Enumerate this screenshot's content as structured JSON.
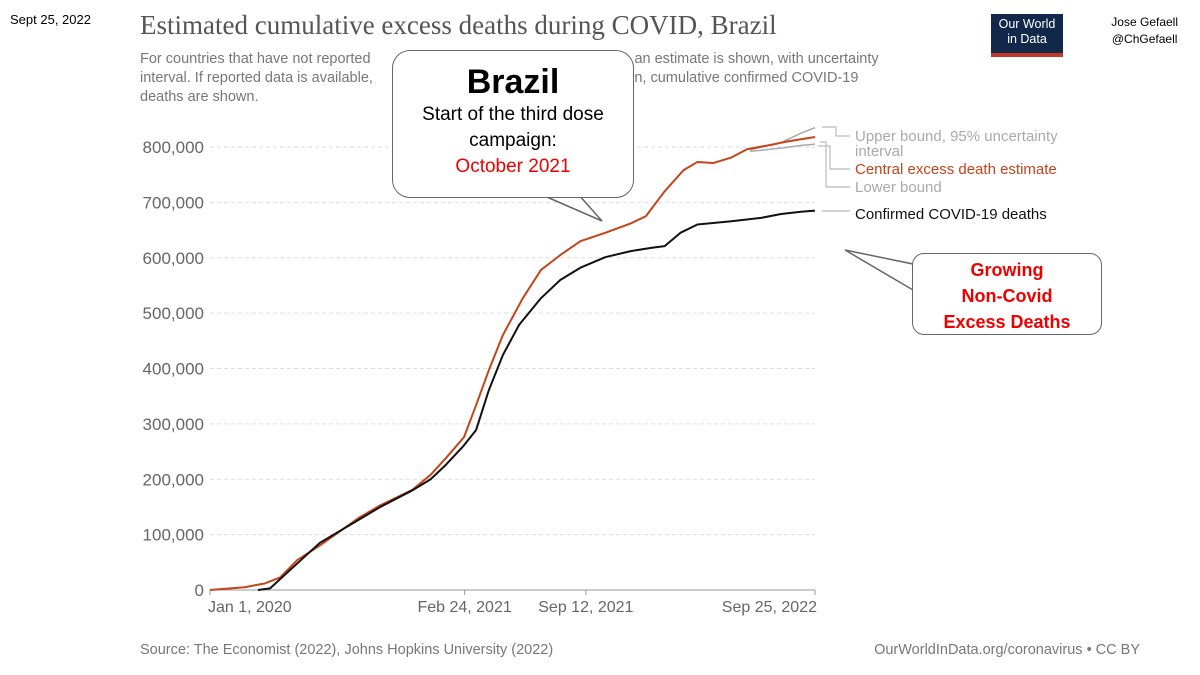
{
  "header": {
    "date": "Sept 25, 2022",
    "author_name": "Jose Gefaell",
    "author_handle": "@ChGefaell",
    "logo_line1": "Our World",
    "logo_line2": "in Data"
  },
  "chart_data": {
    "type": "line",
    "title": "Estimated cumulative excess deaths during COVID, Brazil",
    "subtitle": "For countries that have not reported all-cause mortality data for a given week, an estimate is shown, with uncertainty interval. If reported data is available, that value only is shown. For comparison, cumulative confirmed COVID-19 deaths are shown.",
    "subtitle_visible": [
      "For countries that have not reported",
      "week, an estimate is shown, with uncertainty",
      "interval. If reported data is available,",
      "arison, cumulative confirmed COVID-19",
      "deaths are shown."
    ],
    "xlabel": "",
    "ylabel": "",
    "xlim": [
      "2020-01-01",
      "2022-09-25"
    ],
    "ylim": [
      0,
      800000
    ],
    "y_ticks": [
      0,
      100000,
      200000,
      300000,
      400000,
      500000,
      600000,
      700000,
      800000
    ],
    "y_tick_labels": [
      "0",
      "100,000",
      "200,000",
      "300,000",
      "400,000",
      "500,000",
      "600,000",
      "700,000",
      "800,000"
    ],
    "x_ticks": [
      "2020-01-01",
      "2021-02-24",
      "2021-09-12",
      "2022-09-25"
    ],
    "x_tick_labels": [
      "Jan 1, 2020",
      "Feb 24, 2021",
      "Sep 12, 2021",
      "Sep 25, 2022"
    ],
    "grid": true,
    "legend_placement": "right (inline labels)",
    "series": [
      {
        "name": "Upper bound, 95% uncertainty interval",
        "label_lines": [
          "Upper bound, 95% uncertainty",
          "interval"
        ],
        "color": "#aaaaaa",
        "points": [
          [
            "2022-06-10",
            795000
          ],
          [
            "2022-07-31",
            808000
          ],
          [
            "2022-09-02",
            825000
          ],
          [
            "2022-09-25",
            835000
          ]
        ]
      },
      {
        "name": "Lower bound",
        "label_lines": [
          "Lower bound"
        ],
        "color": "#aaaaaa",
        "points": [
          [
            "2022-06-10",
            792000
          ],
          [
            "2022-07-31",
            798000
          ],
          [
            "2022-09-02",
            803000
          ],
          [
            "2022-09-25",
            805000
          ]
        ]
      },
      {
        "name": "Central excess death estimate",
        "label_lines": [
          "Central excess death estimate"
        ],
        "color": "#c4441b",
        "points": [
          [
            "2020-01-01",
            0
          ],
          [
            "2020-02-27",
            5000
          ],
          [
            "2020-04-01",
            12000
          ],
          [
            "2020-04-26",
            23000
          ],
          [
            "2020-05-24",
            54000
          ],
          [
            "2020-07-01",
            81000
          ],
          [
            "2020-09-02",
            130000
          ],
          [
            "2020-10-08",
            153000
          ],
          [
            "2020-11-30",
            181000
          ],
          [
            "2020-12-30",
            208000
          ],
          [
            "2021-01-24",
            238000
          ],
          [
            "2021-02-23",
            276000
          ],
          [
            "2021-03-15",
            334000
          ],
          [
            "2021-04-05",
            397000
          ],
          [
            "2021-04-28",
            460000
          ],
          [
            "2021-05-31",
            527000
          ],
          [
            "2021-06-30",
            578000
          ],
          [
            "2021-08-01",
            605000
          ],
          [
            "2021-09-03",
            630000
          ],
          [
            "2021-10-14",
            645000
          ],
          [
            "2021-11-25",
            662000
          ],
          [
            "2021-12-20",
            675000
          ],
          [
            "2022-01-20",
            720000
          ],
          [
            "2022-02-20",
            758000
          ],
          [
            "2022-03-15",
            773000
          ],
          [
            "2022-04-10",
            771000
          ],
          [
            "2022-05-10",
            781000
          ],
          [
            "2022-06-05",
            796000
          ],
          [
            "2022-07-10",
            803000
          ],
          [
            "2022-08-10",
            810000
          ],
          [
            "2022-09-25",
            818000
          ]
        ]
      },
      {
        "name": "Confirmed COVID-19 deaths",
        "label_lines": [
          "Confirmed COVID-19 deaths"
        ],
        "color": "#111111",
        "points": [
          [
            "2020-03-20",
            0
          ],
          [
            "2020-04-09",
            3000
          ],
          [
            "2020-05-12",
            36000
          ],
          [
            "2020-06-30",
            85000
          ],
          [
            "2020-09-01",
            126000
          ],
          [
            "2020-10-08",
            150000
          ],
          [
            "2020-11-30",
            180000
          ],
          [
            "2020-12-30",
            200000
          ],
          [
            "2021-01-24",
            226000
          ],
          [
            "2021-02-22",
            260000
          ],
          [
            "2021-03-15",
            289000
          ],
          [
            "2021-04-05",
            361000
          ],
          [
            "2021-04-28",
            424000
          ],
          [
            "2021-05-25",
            479000
          ],
          [
            "2021-06-30",
            527000
          ],
          [
            "2021-08-01",
            560000
          ],
          [
            "2021-09-03",
            582000
          ],
          [
            "2021-10-14",
            601000
          ],
          [
            "2021-11-25",
            612000
          ],
          [
            "2021-12-30",
            618000
          ],
          [
            "2022-01-20",
            621000
          ],
          [
            "2022-02-15",
            645000
          ],
          [
            "2022-03-15",
            660000
          ],
          [
            "2022-05-10",
            666000
          ],
          [
            "2022-06-28",
            672000
          ],
          [
            "2022-07-31",
            679000
          ],
          [
            "2022-09-02",
            683000
          ],
          [
            "2022-09-25",
            685000
          ]
        ]
      }
    ],
    "annotations": {
      "callout1": {
        "heading": "Brazil",
        "line1": "Start of the third dose",
        "line2": "campaign:",
        "highlight": "October 2021"
      },
      "callout2": {
        "lines": [
          "Growing",
          "Non-Covid",
          "Excess Deaths"
        ]
      }
    }
  },
  "footer": {
    "source": "Source: The Economist (2022), Johns Hopkins University (2022)",
    "credit": "OurWorldInData.org/coronavirus • CC BY"
  }
}
